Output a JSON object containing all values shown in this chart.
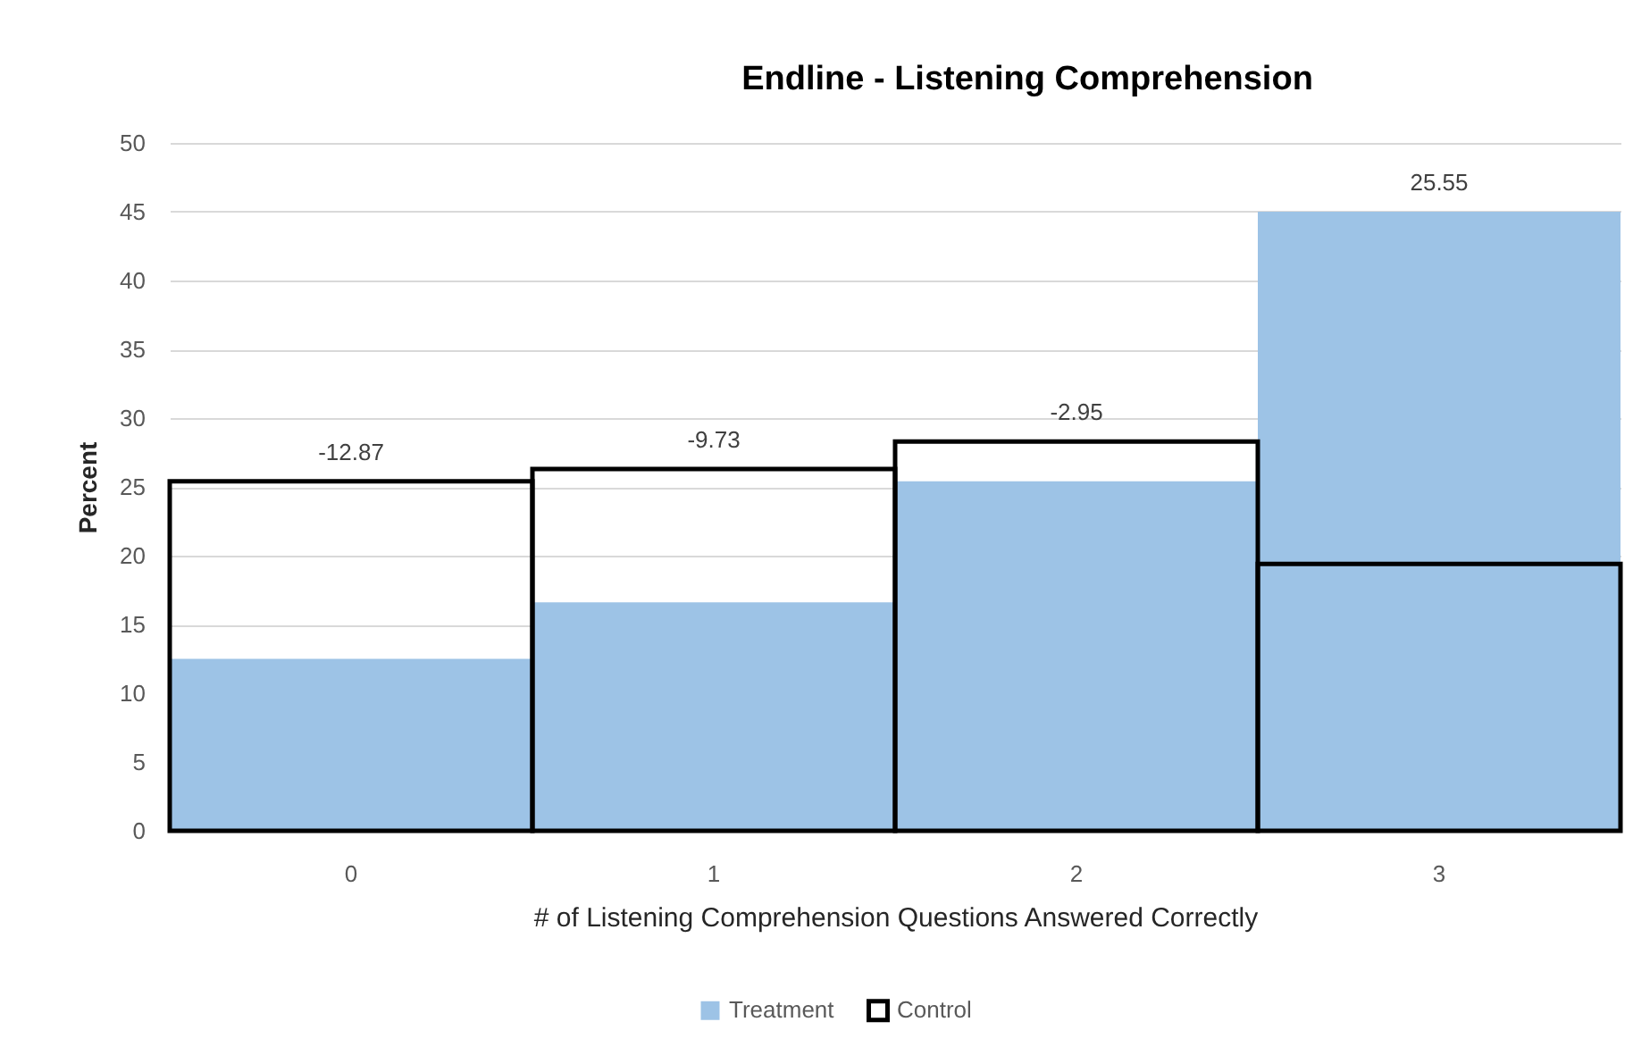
{
  "chart_data": {
    "type": "bar",
    "title": "Endline - Listening Comprehension",
    "xlabel": "# of Listening Comprehension Questions Answered Correctly",
    "ylabel": "Percent",
    "categories": [
      "0",
      "1",
      "2",
      "3"
    ],
    "series": [
      {
        "name": "Treatment",
        "color": "#9dc3e6",
        "values": [
          12.5,
          16.6,
          25.4,
          45.0
        ]
      },
      {
        "name": "Control",
        "color": "#000000",
        "values": [
          25.4,
          26.3,
          28.3,
          19.4
        ]
      }
    ],
    "ylim": [
      0,
      50
    ],
    "yticks": [
      0,
      5,
      10,
      15,
      20,
      25,
      30,
      35,
      40,
      45,
      50
    ],
    "grid": "y",
    "legend": "bottom",
    "annotations": [
      {
        "text": "-12.87",
        "x": "0",
        "y": 25.4
      },
      {
        "text": "-9.73",
        "x": "1",
        "y": 26.3
      },
      {
        "text": "-2.95",
        "x": "2",
        "y": 28.3
      },
      {
        "text": "25.55",
        "x": "3",
        "y": 45.0
      }
    ]
  }
}
